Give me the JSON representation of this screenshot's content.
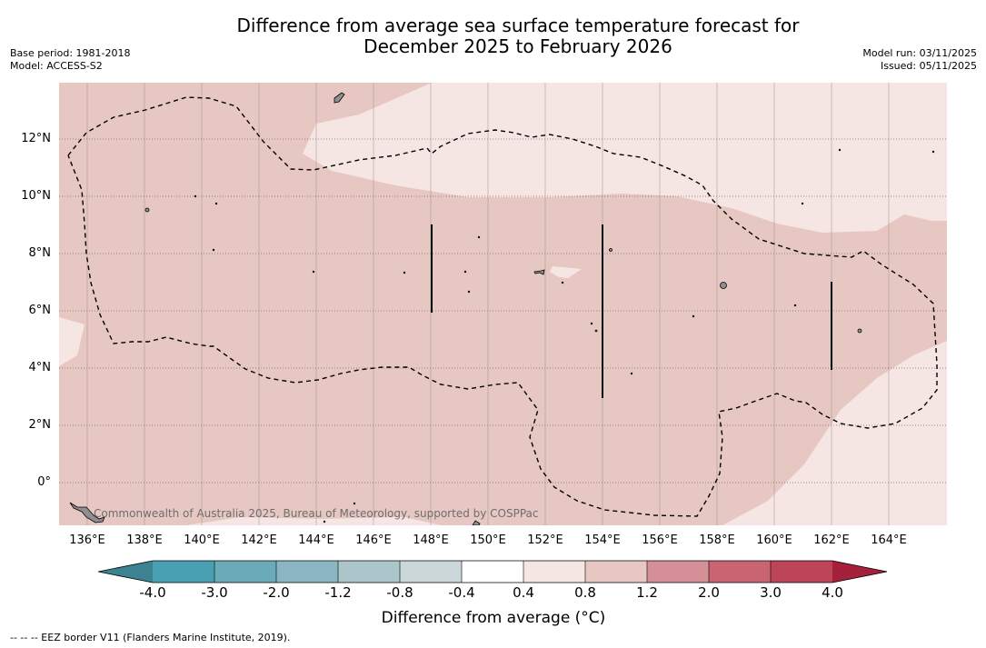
{
  "title": {
    "line1": "Difference from average sea surface temperature forecast for",
    "line2": "December 2025 to February 2026"
  },
  "meta_left": {
    "base_period": "Base period: 1981-2018",
    "model": "Model: ACCESS-S2"
  },
  "meta_right": {
    "model_run": "Model run: 03/11/2025",
    "issued": "Issued: 05/11/2025"
  },
  "map": {
    "longitude_ticks": [
      "136°E",
      "138°E",
      "140°E",
      "142°E",
      "144°E",
      "146°E",
      "148°E",
      "150°E",
      "152°E",
      "154°E",
      "156°E",
      "158°E",
      "160°E",
      "162°E",
      "164°E"
    ],
    "latitude_ticks": [
      "12°N",
      "10°N",
      "8°N",
      "6°N",
      "4°N",
      "2°N",
      "0°"
    ],
    "lon_range": [
      135.0,
      166.0
    ],
    "lat_range": [
      -1.5,
      14.0
    ],
    "eez_border_style": "dashed",
    "credit": "Commonwealth of Australia 2025, Bureau of Meteorology, supported by COSPPac",
    "fill_colors": {
      "band_0_4_to_0_8": "#f5e6e4",
      "band_0_8_to_1_2": "#e7c7c2"
    }
  },
  "colorbar": {
    "label": "Difference from average (°C)",
    "tick_labels": [
      "-4.0",
      "-3.0",
      "-2.0",
      "-1.2",
      "-0.8",
      "-0.4",
      "0.4",
      "0.8",
      "1.2",
      "2.0",
      "3.0",
      "4.0"
    ],
    "colors": {
      "under": "#3d8290",
      "bins": [
        "#48a0b2",
        "#6aaab9",
        "#8ab6c1",
        "#aac6cb",
        "#cbd7d8",
        "#ffffff",
        "#f5e6e4",
        "#e7c7c2",
        "#d58f96",
        "#c96572",
        "#bc4657"
      ],
      "over": "#a5203a"
    }
  },
  "footnote": "-- -- -- EEZ border V11 (Flanders Marine Institute, 2019)."
}
